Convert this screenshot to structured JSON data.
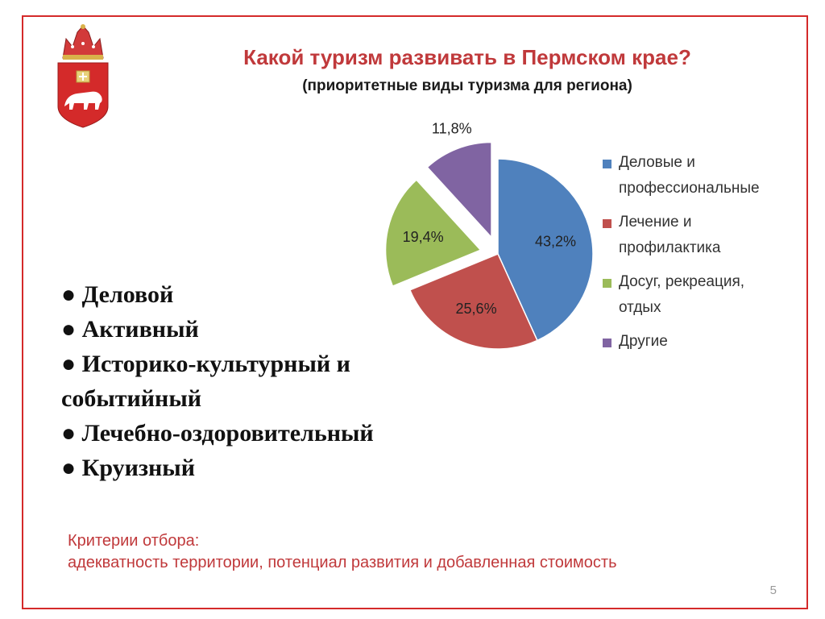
{
  "slide": {
    "title": "Какой туризм развивать в Пермском крае?",
    "subtitle": "(приоритетные виды туризма для региона)",
    "page_number": "5",
    "frame_color": "#d42a2a",
    "title_color": "#c0393b"
  },
  "emblem": {
    "icon": "perm-krai-coat-of-arms-icon"
  },
  "chart_data": {
    "type": "pie",
    "title": "",
    "categories": [
      "Деловые и профессиональные",
      "Лечение и профилактика",
      "Досуг, рекреация, отдых",
      "Другие"
    ],
    "values": [
      43.2,
      25.6,
      19.4,
      11.8
    ],
    "value_labels": [
      "43,2%",
      "25,6%",
      "19,4%",
      "11,8%"
    ],
    "colors": [
      "#4f81bd",
      "#c0504d",
      "#9bbb59",
      "#8064a2"
    ],
    "exploded": [
      false,
      false,
      true,
      true
    ],
    "legend": {
      "position": "right",
      "entries": [
        [
          "Деловые и",
          "профессиональные"
        ],
        [
          "Лечение и",
          "профилактика"
        ],
        [
          "Досуг, рекреация,",
          "отдых"
        ],
        [
          "Другие"
        ]
      ]
    }
  },
  "bullets": [
    "● Деловой",
    "● Активный",
    "● Историко-культурный и",
    "событийный",
    "● Лечебно-оздоровительный",
    "● Круизный"
  ],
  "criteria": {
    "heading": "Критерии отбора:",
    "text": "адекватность территории, потенциал развития и добавленная стоимость"
  }
}
